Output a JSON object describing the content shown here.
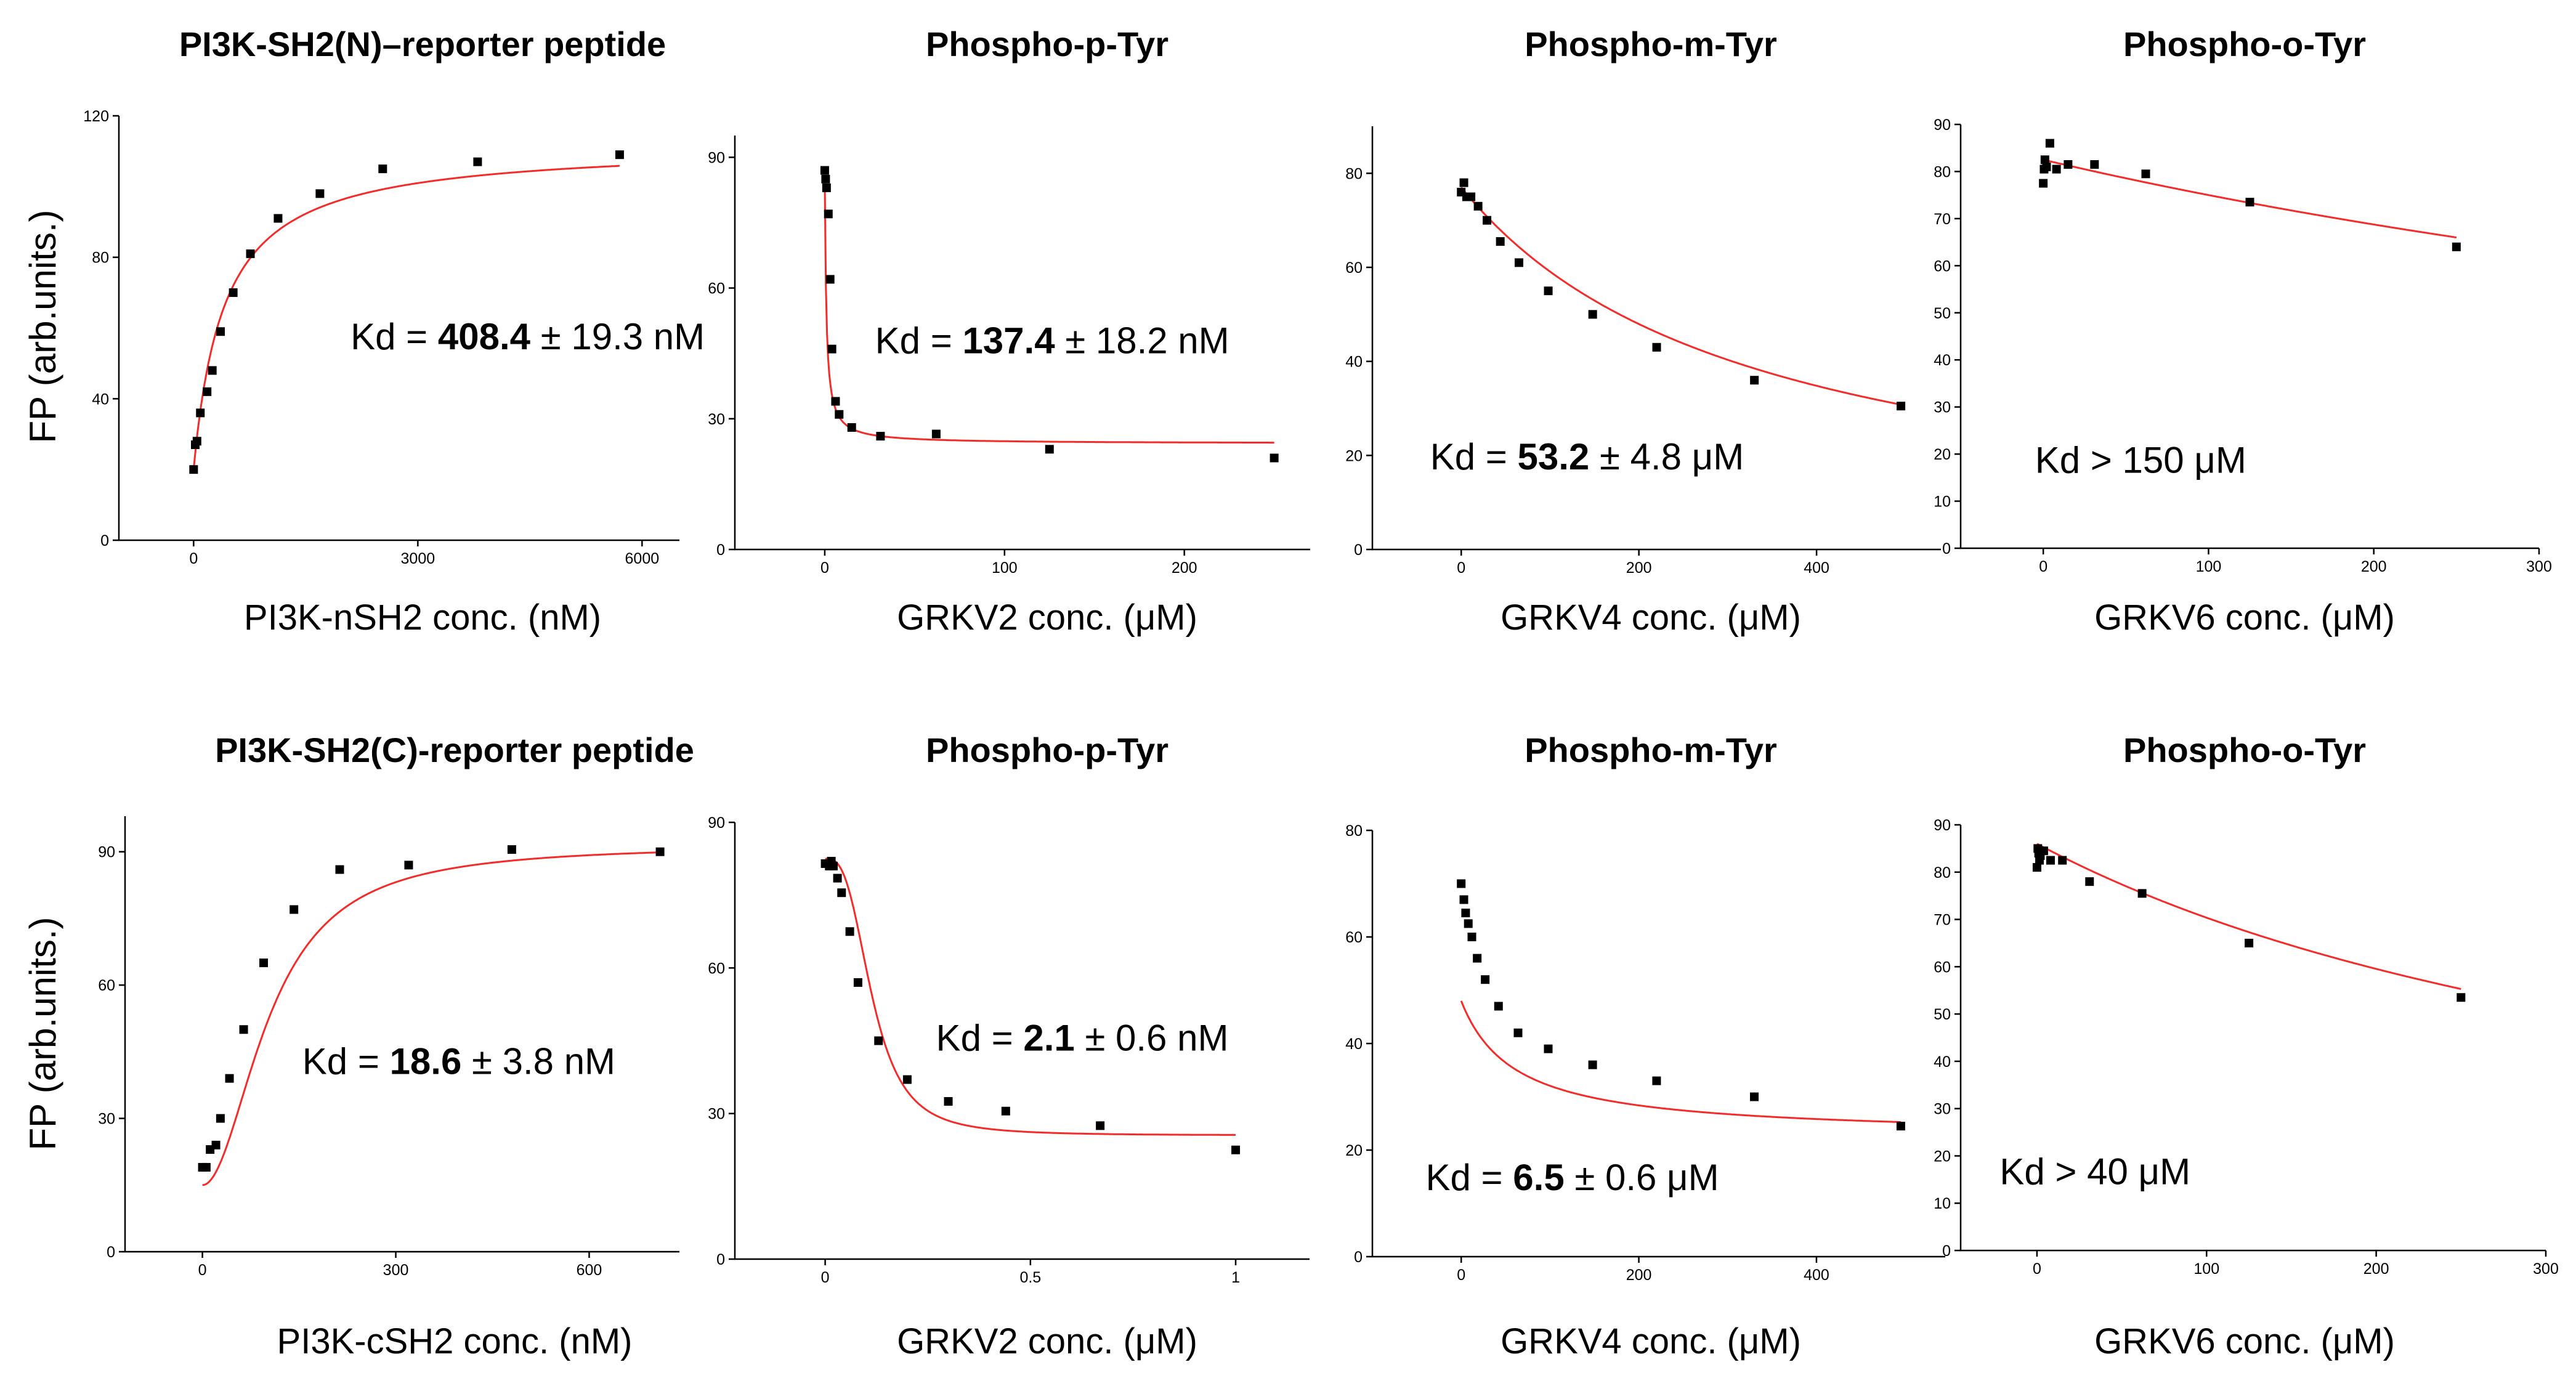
{
  "chart_data": [
    {
      "type": "scatter",
      "title": "PI3K-SH2(N)–reporter peptide",
      "xlabel": "PI3K-nSH2 conc. (nM)",
      "ylabel": "FP (arb.units.)",
      "xlim": [
        -1000,
        6500
      ],
      "ylim": [
        0,
        120
      ],
      "xticks": [
        0,
        3000,
        6000
      ],
      "yticks": [
        0,
        40,
        80,
        120
      ],
      "fit": {
        "model": "binding",
        "params": [
          20,
          112,
          408.4
        ]
      },
      "annotation": {
        "pre": "Kd = ",
        "value": "408.4",
        "post": " ± 19.3 nM",
        "x": 2100,
        "y": 54
      },
      "points": [
        [
          0,
          20
        ],
        [
          22,
          27
        ],
        [
          45,
          28
        ],
        [
          90,
          36
        ],
        [
          180,
          42
        ],
        [
          250,
          48
        ],
        [
          360,
          59
        ],
        [
          530,
          70
        ],
        [
          760,
          81
        ],
        [
          1130,
          91
        ],
        [
          1690,
          98
        ],
        [
          2530,
          105
        ],
        [
          3800,
          107
        ],
        [
          5700,
          109
        ]
      ]
    },
    {
      "type": "scatter",
      "title": "Phospho-p-Tyr",
      "xlabel": "GRKV2 conc. (μM)",
      "ylabel": "",
      "xlim": [
        -50,
        270
      ],
      "ylim": [
        0,
        95
      ],
      "xticks": [
        0,
        100,
        200
      ],
      "yticks": [
        0,
        30,
        60,
        90
      ],
      "fit": {
        "model": "competition",
        "params": [
          24.3,
          85,
          0.9
        ]
      },
      "annotation": {
        "pre": "Kd = ",
        "value": "137.4",
        "post": " ± 18.2 nM",
        "x": 28,
        "y": 45
      },
      "points": [
        [
          0,
          87
        ],
        [
          0.5,
          85
        ],
        [
          1,
          83
        ],
        [
          2,
          77
        ],
        [
          3,
          62
        ],
        [
          4,
          46
        ],
        [
          6,
          34
        ],
        [
          8,
          31
        ],
        [
          15,
          28
        ],
        [
          31,
          26
        ],
        [
          62,
          26.5
        ],
        [
          125,
          23
        ],
        [
          250,
          21
        ]
      ]
    },
    {
      "type": "scatter",
      "title": "Phospho-m-Tyr",
      "xlabel": "GRKV4 conc. (μM)",
      "ylabel": "",
      "xlim": [
        -100,
        540
      ],
      "ylim": [
        0,
        90
      ],
      "xticks": [
        0,
        200,
        400
      ],
      "yticks": [
        0,
        20,
        40,
        60,
        80
      ],
      "fit": {
        "model": "competition",
        "params": [
          0,
          77,
          330
        ]
      },
      "annotation": {
        "pre": "Kd = ",
        "value": "53.2",
        "post": " ± 4.8 μM",
        "x": -35,
        "y": 17
      },
      "points": [
        [
          0,
          76
        ],
        [
          3,
          78
        ],
        [
          6,
          75
        ],
        [
          11,
          75
        ],
        [
          19,
          73
        ],
        [
          29,
          70
        ],
        [
          44,
          65.5
        ],
        [
          65,
          61
        ],
        [
          98,
          55
        ],
        [
          148,
          50
        ],
        [
          220,
          43
        ],
        [
          330,
          36
        ],
        [
          495,
          30.5
        ]
      ]
    },
    {
      "type": "scatter",
      "title": "Phospho-o-Tyr",
      "xlabel": "GRKV6 conc. (μM)",
      "ylabel": "",
      "xlim": [
        -50,
        300
      ],
      "ylim": [
        0,
        90
      ],
      "xticks": [
        0,
        100,
        200,
        300
      ],
      "yticks": [
        0,
        10,
        20,
        30,
        40,
        50,
        60,
        70,
        80,
        90
      ],
      "fit": {
        "model": "competition",
        "params": [
          0,
          82.5,
          1000
        ]
      },
      "annotation": {
        "pre": "Kd > 150 μM",
        "value": "",
        "post": "",
        "x": -5,
        "y": 16
      },
      "points": [
        [
          0,
          77.5
        ],
        [
          0.5,
          80.5
        ],
        [
          1,
          82.5
        ],
        [
          2,
          81
        ],
        [
          4,
          86
        ],
        [
          8,
          80.5
        ],
        [
          15,
          81.5
        ],
        [
          31,
          81.5
        ],
        [
          62,
          79.5
        ],
        [
          125,
          73.5
        ],
        [
          250,
          64
        ]
      ]
    },
    {
      "type": "scatter",
      "title": "PI3K-SH2(C)-reporter peptide",
      "xlabel": "PI3K-cSH2 conc. (nM)",
      "ylabel": "FP (arb.units.)",
      "xlim": [
        -120,
        740
      ],
      "ylim": [
        0,
        98
      ],
      "xticks": [
        0,
        300,
        600
      ],
      "yticks": [
        0,
        30,
        60,
        90
      ],
      "fit": {
        "model": "hill",
        "params": [
          15,
          91.5,
          105,
          2
        ]
      },
      "annotation": {
        "pre": "Kd = ",
        "value": "18.6",
        "post": " ± 3.8 nM",
        "x": 155,
        "y": 40
      },
      "points": [
        [
          0,
          19
        ],
        [
          6,
          19
        ],
        [
          12,
          23
        ],
        [
          21,
          24
        ],
        [
          28,
          30
        ],
        [
          42,
          39
        ],
        [
          64,
          50
        ],
        [
          95,
          65
        ],
        [
          142,
          77
        ],
        [
          213,
          86
        ],
        [
          320,
          87
        ],
        [
          480,
          90.5
        ],
        [
          710,
          90
        ]
      ]
    },
    {
      "type": "scatter",
      "title": "Phospho-p-Tyr",
      "xlabel": "GRKV2 conc. (μM)",
      "ylabel": "",
      "xlim": [
        -0.22,
        1.18
      ],
      "ylim": [
        0,
        90
      ],
      "xticks": [
        0,
        0.5,
        1.0
      ],
      "yticks": [
        0,
        30,
        60,
        90
      ],
      "fit": {
        "model": "hill",
        "params": [
          82.5,
          25.5,
          0.115,
          3
        ]
      },
      "annotation": {
        "pre": "Kd = ",
        "value": "2.1",
        "post": " ± 0.6 nM",
        "x": 0.27,
        "y": 43
      },
      "points": [
        [
          0,
          81.5
        ],
        [
          0.01,
          81
        ],
        [
          0.015,
          82
        ],
        [
          0.02,
          81
        ],
        [
          0.03,
          78.5
        ],
        [
          0.04,
          75.5
        ],
        [
          0.06,
          67.5
        ],
        [
          0.08,
          57
        ],
        [
          0.13,
          45
        ],
        [
          0.2,
          37
        ],
        [
          0.3,
          32.5
        ],
        [
          0.44,
          30.5
        ],
        [
          0.67,
          27.5
        ],
        [
          1.0,
          22.5
        ]
      ]
    },
    {
      "type": "scatter",
      "title": "Phospho-m-Tyr",
      "xlabel": "GRKV4 conc. (μM)",
      "ylabel": "",
      "xlim": [
        -100,
        545
      ],
      "ylim": [
        0,
        80
      ],
      "xticks": [
        0,
        200,
        400
      ],
      "yticks": [
        0,
        20,
        40,
        60,
        80
      ],
      "fit": {
        "model": "competition",
        "params": [
          22.5,
          48,
          60
        ]
      },
      "annotation": {
        "pre": "Kd = ",
        "value": "6.5",
        "post": " ± 0.6 μM",
        "x": -40,
        "y": 12.5
      },
      "points": [
        [
          0,
          70
        ],
        [
          3,
          67
        ],
        [
          5,
          64.5
        ],
        [
          8,
          62.5
        ],
        [
          12,
          60
        ],
        [
          18,
          56
        ],
        [
          27,
          52
        ],
        [
          42,
          47
        ],
        [
          64,
          42
        ],
        [
          98,
          39
        ],
        [
          148,
          36
        ],
        [
          220,
          33
        ],
        [
          330,
          30
        ],
        [
          495,
          24.5
        ]
      ]
    },
    {
      "type": "scatter",
      "title": "Phospho-o-Tyr",
      "xlabel": "GRKV6 conc. (μM)",
      "ylabel": "",
      "xlim": [
        -45,
        300
      ],
      "ylim": [
        0,
        90
      ],
      "xticks": [
        0,
        100,
        200,
        300
      ],
      "yticks": [
        0,
        10,
        20,
        30,
        40,
        50,
        60,
        70,
        80,
        90
      ],
      "fit": {
        "model": "competition",
        "params": [
          0,
          86,
          450
        ]
      },
      "annotation": {
        "pre": "Kd > 40 μM",
        "value": "",
        "post": "",
        "x": -22,
        "y": 14
      },
      "points": [
        [
          0,
          81
        ],
        [
          0.5,
          85
        ],
        [
          1,
          84
        ],
        [
          1.5,
          82.5
        ],
        [
          2,
          83.5
        ],
        [
          4,
          84.5
        ],
        [
          8,
          82.5
        ],
        [
          15,
          82.5
        ],
        [
          31,
          78
        ],
        [
          62,
          75.5
        ],
        [
          125,
          65
        ],
        [
          250,
          53.5
        ]
      ]
    }
  ]
}
